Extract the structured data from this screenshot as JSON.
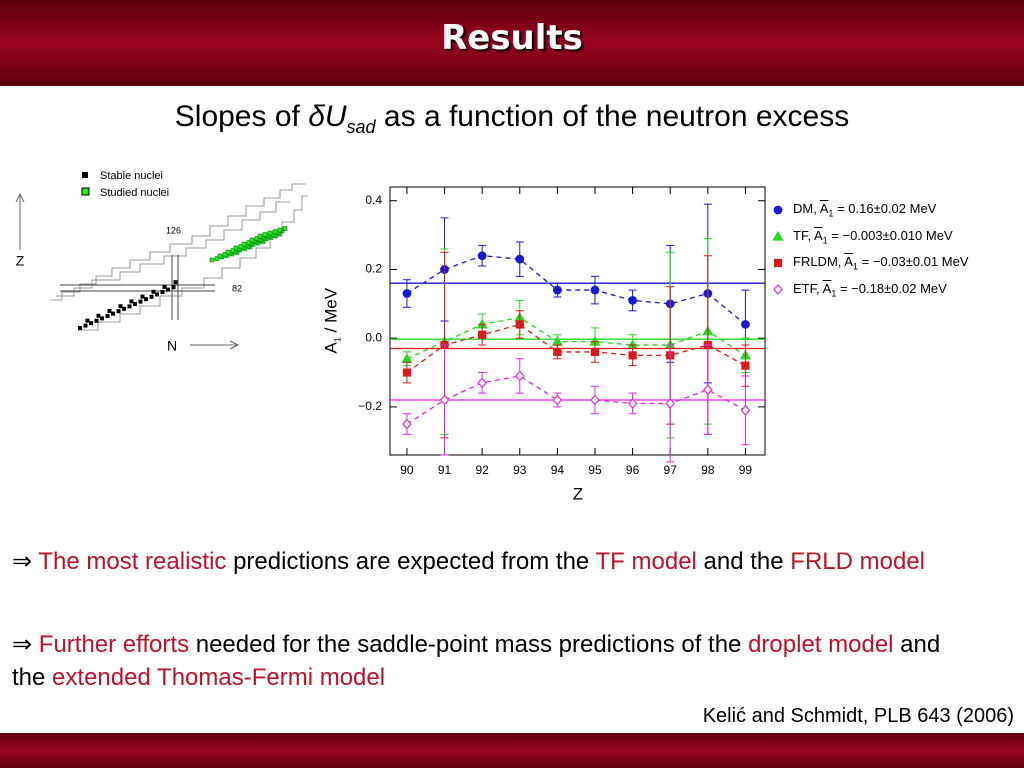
{
  "header": {
    "title": "Results"
  },
  "subtitle": {
    "text": "Slopes of",
    "symbol": "δU",
    "subscript": "sad",
    "rest": "as a function of the neutron excess"
  },
  "diagram": {
    "legend": [
      "Stable nuclei",
      "Studied nuclei"
    ],
    "magic_numbers": [
      "126",
      "82"
    ],
    "y_axis": "Z",
    "x_axis": "N"
  },
  "chart_data": {
    "type": "errorbar",
    "x": [
      90,
      91,
      92,
      93,
      94,
      95,
      96,
      97,
      98,
      99
    ],
    "xlim": [
      89.55,
      99.52
    ],
    "xticks": [
      90,
      91,
      92,
      93,
      94,
      95,
      96,
      97,
      98,
      99
    ],
    "ylim": [
      -0.34,
      0.44
    ],
    "yticks": [
      {
        "value": -0.2,
        "label": "−0.2"
      },
      {
        "value": 0,
        "label": "0.0"
      },
      0.2,
      0.4
    ],
    "x_label": "Z",
    "y_label": {
      "symbol": "A",
      "subscript": "1",
      "unit": "/ MeV"
    },
    "legend_symbol": {
      "symbol": "A",
      "subscript": "1"
    },
    "series": [
      {
        "name": "DM,",
        "color": "#1a1ad6",
        "marker": "circle",
        "filled": true,
        "values": [
          0.13,
          0.2,
          0.24,
          0.23,
          0.14,
          0.14,
          0.11,
          0.1,
          0.13,
          0.04
        ],
        "errors": [
          0.04,
          0.15,
          0.03,
          0.05,
          0.02,
          0.04,
          0.03,
          0.17,
          0.26,
          0.1
        ],
        "mean": 0.16,
        "mean_label": "= 0.16±0.02 MeV"
      },
      {
        "name": "TF,",
        "color": "#22dd22",
        "marker": "triangle",
        "filled": true,
        "values": [
          -0.06,
          -0.01,
          0.04,
          0.06,
          -0.01,
          -0.01,
          -0.02,
          -0.02,
          0.02,
          -0.05
        ],
        "errors": [
          0.02,
          0.27,
          0.03,
          0.05,
          0.02,
          0.04,
          0.03,
          0.27,
          0.27,
          0.05
        ],
        "mean": -0.003,
        "mean_label": "= −0.003±0.010 MeV"
      },
      {
        "name": "FRLDM,",
        "color": "#e01818",
        "marker": "square",
        "filled": true,
        "values": [
          -0.1,
          -0.02,
          0.01,
          0.04,
          -0.04,
          -0.04,
          -0.05,
          -0.05,
          -0.02,
          -0.08
        ],
        "errors": [
          0.03,
          0.27,
          0.03,
          0.04,
          0.02,
          0.03,
          0.03,
          0.2,
          0.26,
          0.06
        ],
        "mean": -0.03,
        "mean_label": "= −0.03±0.01 MeV"
      },
      {
        "name": "ETF,",
        "color": "#ee22ee",
        "marker": "diamond",
        "filled": false,
        "values": [
          -0.25,
          -0.18,
          -0.13,
          -0.11,
          -0.18,
          -0.18,
          -0.19,
          -0.19,
          -0.15,
          -0.21
        ],
        "errors": [
          0.03,
          0.16,
          0.03,
          0.05,
          0.02,
          0.04,
          0.03,
          0.17,
          0.13,
          0.1
        ],
        "mean": -0.18,
        "mean_label": "= −0.18±0.02 MeV"
      }
    ]
  },
  "bullets": [
    {
      "arrow": "⇒",
      "parts": [
        {
          "text": "The most realistic",
          "highlight": true
        },
        {
          "text": "predictions are expected from the",
          "highlight": false
        },
        {
          "text": "TF model",
          "highlight": true
        },
        {
          "text": "and the",
          "highlight": false
        },
        {
          "text": "FRLD model",
          "highlight": true
        }
      ]
    },
    {
      "arrow": "⇒",
      "parts": [
        {
          "text": "Further efforts",
          "highlight": true
        },
        {
          "text": "needed for the saddle-point mass predictions of the",
          "highlight": false
        },
        {
          "text": "droplet model",
          "highlight": true
        },
        {
          "text": "and the",
          "highlight": false
        },
        {
          "text": "extended Thomas-Fermi model",
          "highlight": true
        }
      ]
    }
  ],
  "citation": "Kelić and Schmidt, PLB 643 (2006)"
}
